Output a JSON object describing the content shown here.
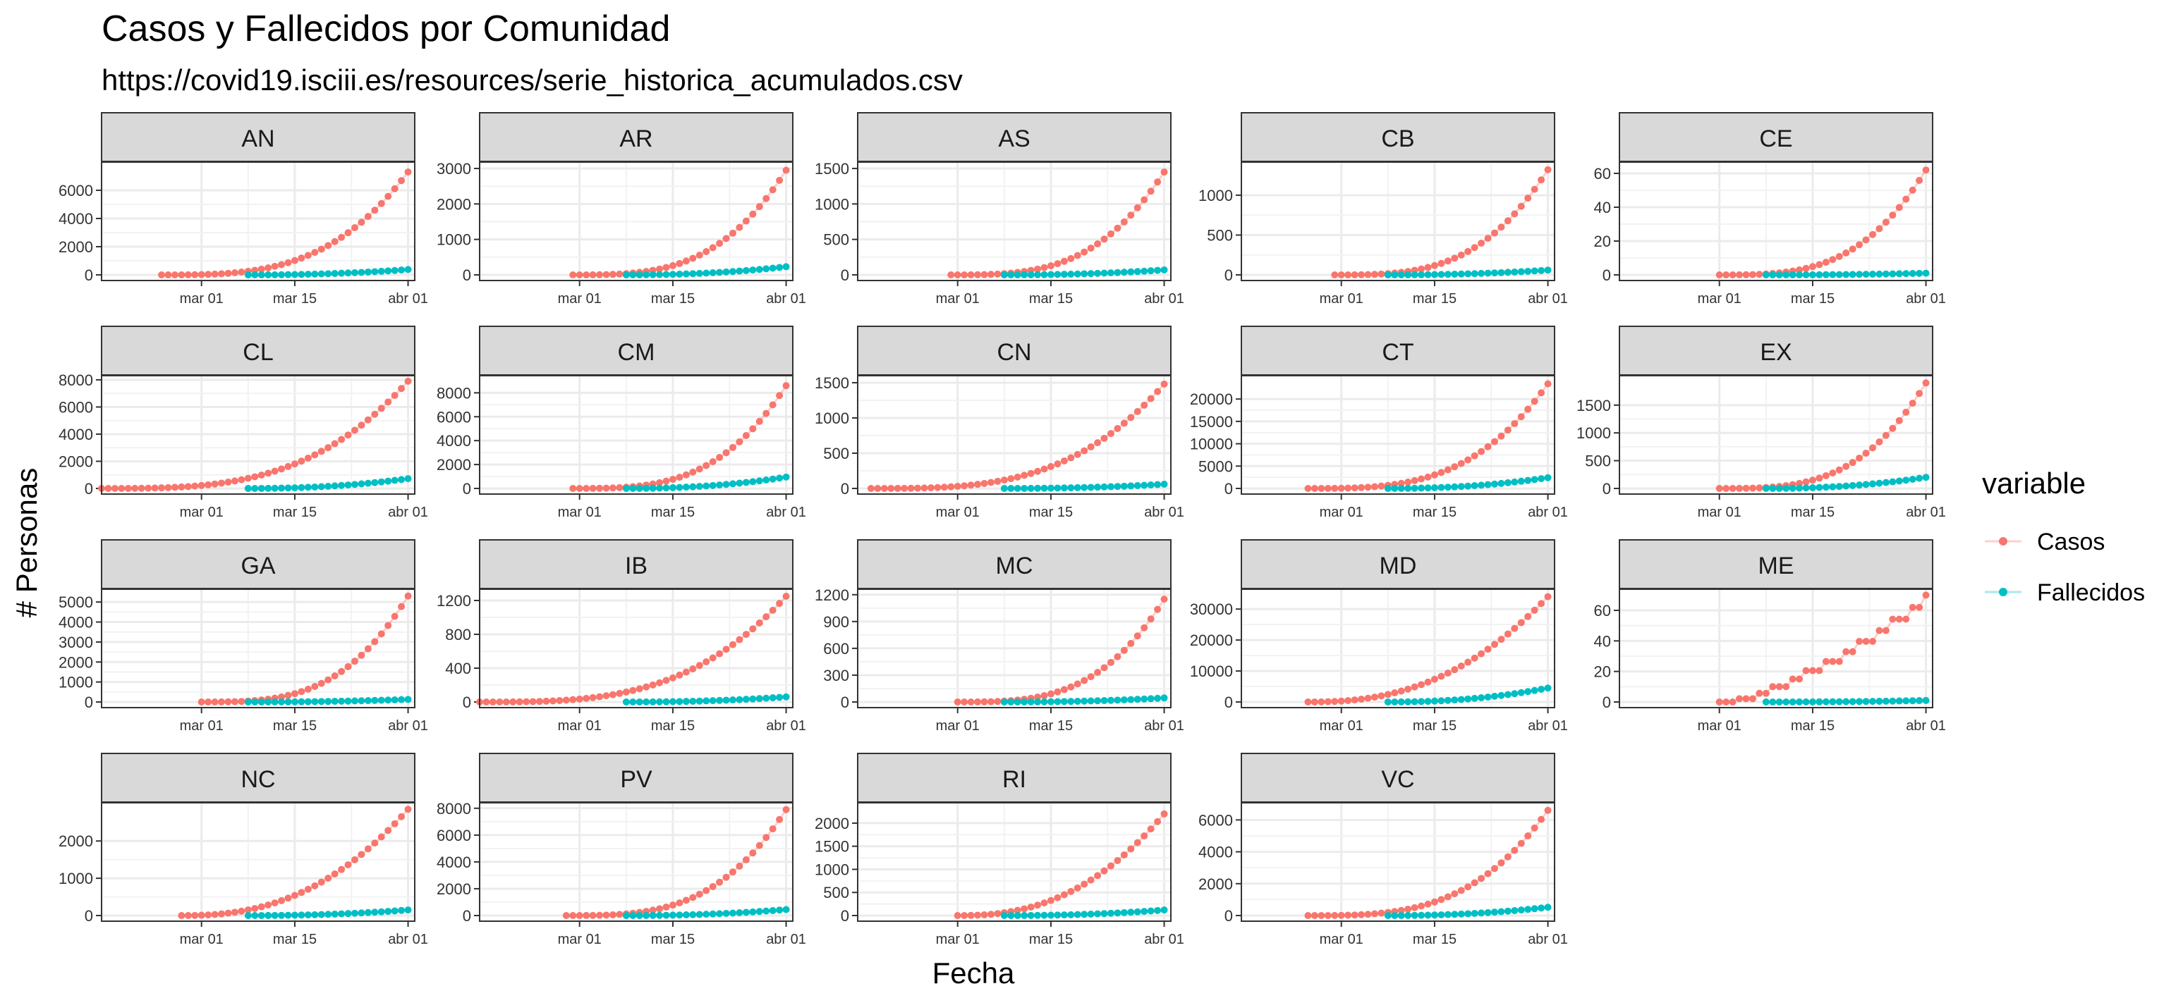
{
  "chart_data": {
    "type": "line",
    "title": "Casos y Fallecidos por Comunidad",
    "subtitle": "https://covid19.isciii.es/resources/serie_historica_acumulados.csv",
    "xlabel": "Fecha",
    "ylabel": "# Personas",
    "x_range": [
      "2020-02-15",
      "2020-04-02"
    ],
    "x_ticks": [
      {
        "date": "2020-03-01",
        "label": "mar 01"
      },
      {
        "date": "2020-03-15",
        "label": "mar 15"
      },
      {
        "date": "2020-04-01",
        "label": "abr 01"
      }
    ],
    "colors": {
      "Casos": "#F8766D",
      "Fallecidos": "#00BFC4"
    },
    "legend": {
      "title": "variable",
      "entries": [
        "Casos",
        "Fallecidos"
      ],
      "position": "right"
    },
    "grid": true,
    "facets": [
      {
        "name": "AN",
        "start": "2020-02-24",
        "end": "2020-04-01",
        "casos_final": 7300,
        "fall_final": 380,
        "yticks": [
          0,
          2000,
          4000,
          6000
        ],
        "ymax": 7800,
        "casos_curve": "late"
      },
      {
        "name": "AR",
        "start": "2020-02-29",
        "end": "2020-04-01",
        "casos_final": 2950,
        "fall_final": 230,
        "yticks": [
          0,
          1000,
          2000,
          3000
        ],
        "ymax": 3100,
        "casos_curve": "late"
      },
      {
        "name": "AS",
        "start": "2020-02-29",
        "end": "2020-04-01",
        "casos_final": 1450,
        "fall_final": 70,
        "yticks": [
          0,
          500,
          1000,
          1500
        ],
        "ymax": 1550,
        "casos_curve": "late"
      },
      {
        "name": "CB",
        "start": "2020-02-29",
        "end": "2020-04-01",
        "casos_final": 1320,
        "fall_final": 60,
        "yticks": [
          0,
          500,
          1000
        ],
        "ymax": 1380,
        "casos_curve": "late"
      },
      {
        "name": "CE",
        "start": "2020-03-01",
        "end": "2020-04-01",
        "casos_final": 62,
        "fall_final": 1,
        "yticks": [
          0,
          20,
          40,
          60
        ],
        "ymax": 65,
        "casos_curve": "late"
      },
      {
        "name": "CL",
        "start": "2020-02-15",
        "end": "2020-04-01",
        "casos_final": 7900,
        "fall_final": 720,
        "yticks": [
          0,
          2000,
          4000,
          6000,
          8000
        ],
        "ymax": 8100,
        "casos_curve": "late"
      },
      {
        "name": "CM",
        "start": "2020-02-29",
        "end": "2020-04-01",
        "casos_final": 8600,
        "fall_final": 950,
        "yticks": [
          0,
          2000,
          4000,
          6000,
          8000
        ],
        "ymax": 9200,
        "casos_curve": "late"
      },
      {
        "name": "CN",
        "start": "2020-02-17",
        "end": "2020-04-01",
        "casos_final": 1480,
        "fall_final": 60,
        "yticks": [
          0,
          500,
          1000,
          1500
        ],
        "ymax": 1560,
        "casos_curve": "late"
      },
      {
        "name": "CT",
        "start": "2020-02-25",
        "end": "2020-04-01",
        "casos_final": 23400,
        "fall_final": 2400,
        "yticks": [
          0,
          5000,
          10000,
          15000,
          20000
        ],
        "ymax": 24600,
        "casos_curve": "late"
      },
      {
        "name": "EX",
        "start": "2020-03-01",
        "end": "2020-04-01",
        "casos_final": 1900,
        "fall_final": 200,
        "yticks": [
          0,
          500,
          1000,
          1500
        ],
        "ymax": 1980,
        "casos_curve": "late"
      },
      {
        "name": "GA",
        "start": "2020-03-01",
        "end": "2020-04-01",
        "casos_final": 5300,
        "fall_final": 130,
        "yticks": [
          0,
          1000,
          2000,
          3000,
          4000,
          5000
        ],
        "ymax": 5500,
        "casos_curve": "late"
      },
      {
        "name": "IB",
        "start": "2020-02-15",
        "end": "2020-04-01",
        "casos_final": 1250,
        "fall_final": 60,
        "yticks": [
          0,
          400,
          800,
          1200
        ],
        "ymax": 1300,
        "casos_curve": "late"
      },
      {
        "name": "MC",
        "start": "2020-03-01",
        "end": "2020-04-01",
        "casos_final": 1150,
        "fall_final": 45,
        "yticks": [
          0,
          300,
          600,
          900,
          1200
        ],
        "ymax": 1230,
        "casos_curve": "late"
      },
      {
        "name": "MD",
        "start": "2020-02-25",
        "end": "2020-04-01",
        "casos_final": 34000,
        "fall_final": 4500,
        "yticks": [
          0,
          10000,
          20000,
          30000
        ],
        "ymax": 35500,
        "casos_curve": "mid"
      },
      {
        "name": "ME",
        "start": "2020-03-01",
        "end": "2020-04-01",
        "casos_final": 70,
        "fall_final": 1,
        "yticks": [
          0,
          20,
          40,
          60
        ],
        "ymax": 72,
        "casos_curve": "step"
      },
      {
        "name": "NC",
        "start": "2020-02-27",
        "end": "2020-04-01",
        "casos_final": 2850,
        "fall_final": 150,
        "yticks": [
          0,
          1000,
          2000
        ],
        "ymax": 2950,
        "casos_curve": "mid"
      },
      {
        "name": "PV",
        "start": "2020-02-28",
        "end": "2020-04-01",
        "casos_final": 7900,
        "fall_final": 450,
        "yticks": [
          0,
          2000,
          4000,
          6000,
          8000
        ],
        "ymax": 8200,
        "casos_curve": "late"
      },
      {
        "name": "RI",
        "start": "2020-03-01",
        "end": "2020-04-01",
        "casos_final": 2200,
        "fall_final": 120,
        "yticks": [
          0,
          500,
          1000,
          1500,
          2000
        ],
        "ymax": 2380,
        "casos_curve": "mid"
      },
      {
        "name": "VC",
        "start": "2020-02-25",
        "end": "2020-04-01",
        "casos_final": 6600,
        "fall_final": 520,
        "yticks": [
          0,
          2000,
          4000,
          6000
        ],
        "ymax": 6900,
        "casos_curve": "late"
      }
    ]
  }
}
